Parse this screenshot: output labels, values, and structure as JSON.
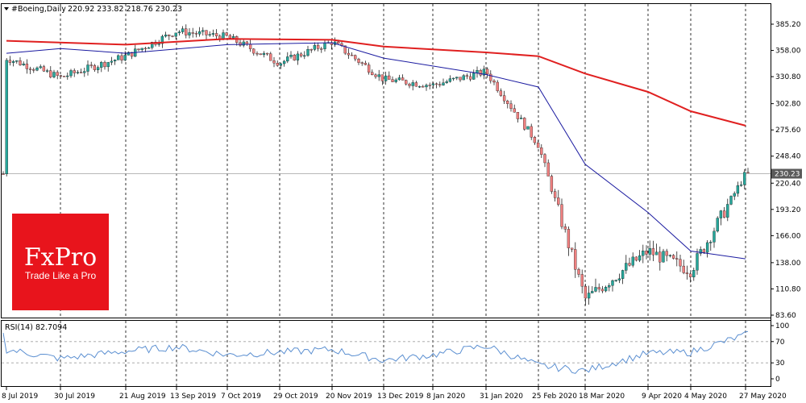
{
  "chart_data": {
    "type": "candlestick",
    "header": {
      "symbol": "#Boeing,Daily",
      "ohlc": "220.92 233.82 218.76 230.23"
    },
    "last_price_label": "230.23",
    "last_price": 230.23,
    "price_axis": {
      "min": 83.6,
      "max": 385.2,
      "ticks": [
        "385.20",
        "358.00",
        "330.80",
        "302.80",
        "275.60",
        "248.40",
        "220.40",
        "193.20",
        "166.00",
        "138.00",
        "110.80",
        "83.60"
      ]
    },
    "time_axis": {
      "labels": [
        "8 Jul 2019",
        "30 Jul 2019",
        "21 Aug 2019",
        "13 Sep 2019",
        "7 Oct 2019",
        "29 Oct 2019",
        "20 Nov 2019",
        "13 Dec 2019",
        "8 Jan 2020",
        "31 Jan 2020",
        "25 Feb 2020",
        "18 Mar 2020",
        "9 Apr 2020",
        "4 May 2020",
        "27 May 2020"
      ]
    },
    "colors": {
      "bull": "#26a69a",
      "bear": "#ef8080",
      "ma_long": "#e02020",
      "ma_short": "#1a1aa0",
      "rsi": "#5b8fd1",
      "grid": "#000000"
    },
    "price_path": [
      [
        "8 Jul 2019",
        350
      ],
      [
        "30 Jul 2019",
        330
      ],
      [
        "21 Aug 2019",
        352
      ],
      [
        "13 Sep 2019",
        378
      ],
      [
        "7 Oct 2019",
        372
      ],
      [
        "29 Oct 2019",
        345
      ],
      [
        "20 Nov 2019",
        367
      ],
      [
        "13 Dec 2019",
        328
      ],
      [
        "8 Jan 2020",
        322
      ],
      [
        "31 Jan 2020",
        336
      ],
      [
        "25 Feb 2020",
        260
      ],
      [
        "18 Mar 2020",
        100
      ],
      [
        "9 Apr 2020",
        150
      ],
      [
        "4 May 2020",
        130
      ],
      [
        "27 May 2020",
        230
      ]
    ],
    "ma_long": [
      [
        "8 Jul 2019",
        368
      ],
      [
        "21 Aug 2019",
        364
      ],
      [
        "7 Oct 2019",
        370
      ],
      [
        "20 Nov 2019",
        369
      ],
      [
        "13 Dec 2019",
        362
      ],
      [
        "31 Jan 2020",
        356
      ],
      [
        "25 Feb 2020",
        352
      ],
      [
        "18 Mar 2020",
        334
      ],
      [
        "9 Apr 2020",
        315
      ],
      [
        "4 May 2020",
        295
      ],
      [
        "27 May 2020",
        280
      ]
    ],
    "ma_short": [
      [
        "8 Jul 2019",
        355
      ],
      [
        "30 Jul 2019",
        360
      ],
      [
        "21 Aug 2019",
        355
      ],
      [
        "7 Oct 2019",
        364
      ],
      [
        "20 Nov 2019",
        366
      ],
      [
        "13 Dec 2019",
        350
      ],
      [
        "31 Jan 2020",
        333
      ],
      [
        "25 Feb 2020",
        320
      ],
      [
        "18 Mar 2020",
        240
      ],
      [
        "9 Apr 2020",
        190
      ],
      [
        "4 May 2020",
        150
      ],
      [
        "27 May 2020",
        142
      ]
    ],
    "rsi": {
      "label": "RSI(14) 82.7094",
      "levels": [
        "100",
        "70",
        "30",
        "0"
      ],
      "overbought": 70,
      "oversold": 30,
      "values": [
        [
          "8 Jul 2019",
          55
        ],
        [
          "30 Jul 2019",
          38
        ],
        [
          "21 Aug 2019",
          52
        ],
        [
          "13 Sep 2019",
          60
        ],
        [
          "7 Oct 2019",
          45
        ],
        [
          "29 Oct 2019",
          50
        ],
        [
          "20 Nov 2019",
          55
        ],
        [
          "13 Dec 2019",
          35
        ],
        [
          "8 Jan 2020",
          45
        ],
        [
          "31 Jan 2020",
          62
        ],
        [
          "25 Feb 2020",
          25
        ],
        [
          "18 Mar 2020",
          15
        ],
        [
          "9 Apr 2020",
          48
        ],
        [
          "4 May 2020",
          50
        ],
        [
          "27 May 2020",
          82.7
        ]
      ]
    }
  },
  "logo": {
    "brand": "FxPro",
    "tagline": "Trade Like a Pro",
    "color": "#e8141c"
  }
}
